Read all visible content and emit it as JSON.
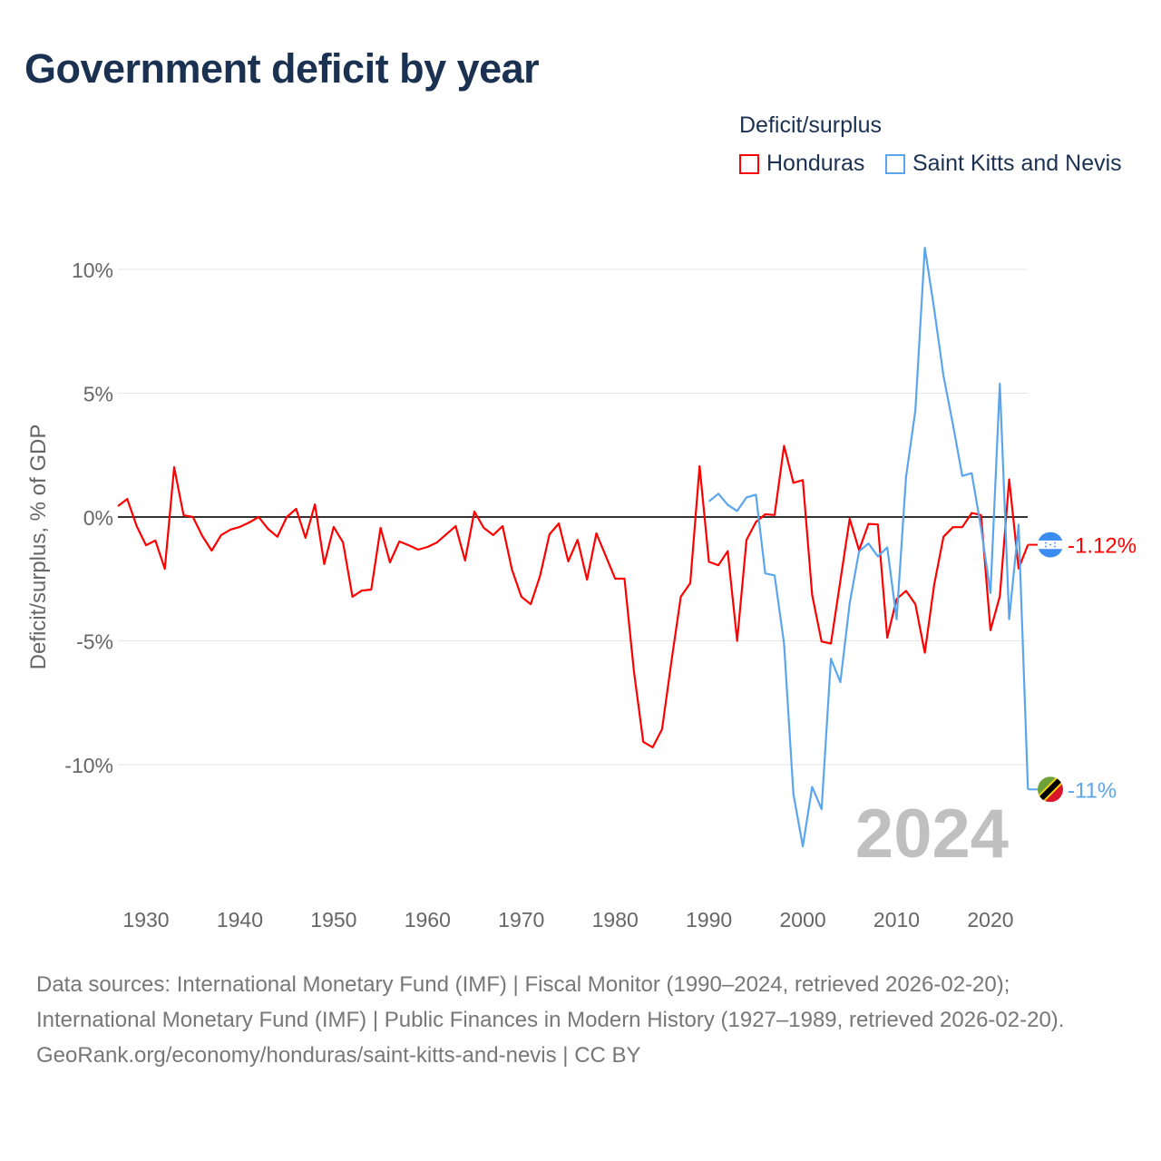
{
  "title": "Government deficit by year",
  "legend": {
    "title": "Deficit/surplus",
    "items": [
      {
        "label": "Honduras",
        "color": "#ff0000"
      },
      {
        "label": "Saint Kitts and Nevis",
        "color": "#5aa5ee"
      }
    ]
  },
  "chart_data": {
    "type": "line",
    "title": "Government deficit by year",
    "xlabel": "",
    "ylabel": "Deficit/surplus, % of GDP",
    "xlim": [
      1927,
      2024
    ],
    "ylim": [
      -13.5,
      11
    ],
    "x_ticks": [
      1930,
      1940,
      1950,
      1960,
      1970,
      1980,
      1990,
      2000,
      2010,
      2020
    ],
    "y_ticks": [
      10,
      5,
      0,
      -5,
      -10
    ],
    "y_tick_labels": [
      "10%",
      "5%",
      "0%",
      "-5%",
      "-10%"
    ],
    "grid": true,
    "legend_position": "top-right",
    "year_label": "2024",
    "series": [
      {
        "name": "Honduras",
        "color": "#ff0000",
        "start_year": 1927,
        "end_label": "-1.12%",
        "values": [
          0.44,
          0.73,
          -0.37,
          -1.14,
          -0.95,
          -2.09,
          2.01,
          0.07,
          0.0,
          -0.77,
          -1.36,
          -0.73,
          -0.51,
          -0.4,
          -0.22,
          0.0,
          -0.48,
          -0.8,
          0.0,
          0.33,
          -0.84,
          0.51,
          -1.9,
          -0.4,
          -1.03,
          -3.22,
          -2.97,
          -2.93,
          -0.44,
          -1.83,
          -0.99,
          -1.14,
          -1.32,
          -1.21,
          -1.03,
          -0.7,
          -0.37,
          -1.76,
          0.22,
          -0.44,
          -0.73,
          -0.37,
          -2.12,
          -3.22,
          -3.52,
          -2.38,
          -0.7,
          -0.26,
          -1.79,
          -0.92,
          -2.53,
          -0.66,
          -1.58,
          -2.49,
          -2.49,
          -6.23,
          -9.08,
          -9.3,
          -8.57,
          -5.82,
          -3.22,
          -2.67,
          2.05,
          -1.81,
          -1.95,
          -1.38,
          -5.0,
          -0.93,
          -0.2,
          0.11,
          0.08,
          2.87,
          1.38,
          1.49,
          -3.15,
          -5.03,
          -5.11,
          -2.57,
          -0.07,
          -1.34,
          -0.28,
          -0.3,
          -4.87,
          -3.31,
          -2.98,
          -3.52,
          -5.48,
          -2.74,
          -0.8,
          -0.41,
          -0.41,
          0.16,
          0.08,
          -4.57,
          -3.2,
          1.52,
          -2.08,
          -1.12
        ]
      },
      {
        "name": "Saint Kitts and Nevis",
        "color": "#5aa5ee",
        "start_year": 1990,
        "end_label": "-11%",
        "values": [
          0.63,
          0.94,
          0.49,
          0.24,
          0.79,
          0.9,
          -2.28,
          -2.36,
          -5.11,
          -11.18,
          -13.3,
          -10.9,
          -11.8,
          -5.72,
          -6.67,
          -3.48,
          -1.39,
          -1.07,
          -1.59,
          -1.23,
          -4.13,
          1.61,
          4.31,
          10.87,
          8.41,
          5.7,
          3.74,
          1.66,
          1.77,
          -0.44,
          -3.07,
          5.38,
          -4.13,
          -0.31,
          -11.0
        ]
      }
    ]
  },
  "footer": {
    "sources_line": "Data sources: International Monetary Fund (IMF) | Fiscal Monitor (1990–2024, retrieved 2026-02-20); International Monetary Fund (IMF) | Public Finances in Modern History (1927–1989, retrieved 2026-02-20).",
    "credit_line": "GeoRank.org/economy/honduras/saint-kitts-and-nevis | CC BY"
  }
}
